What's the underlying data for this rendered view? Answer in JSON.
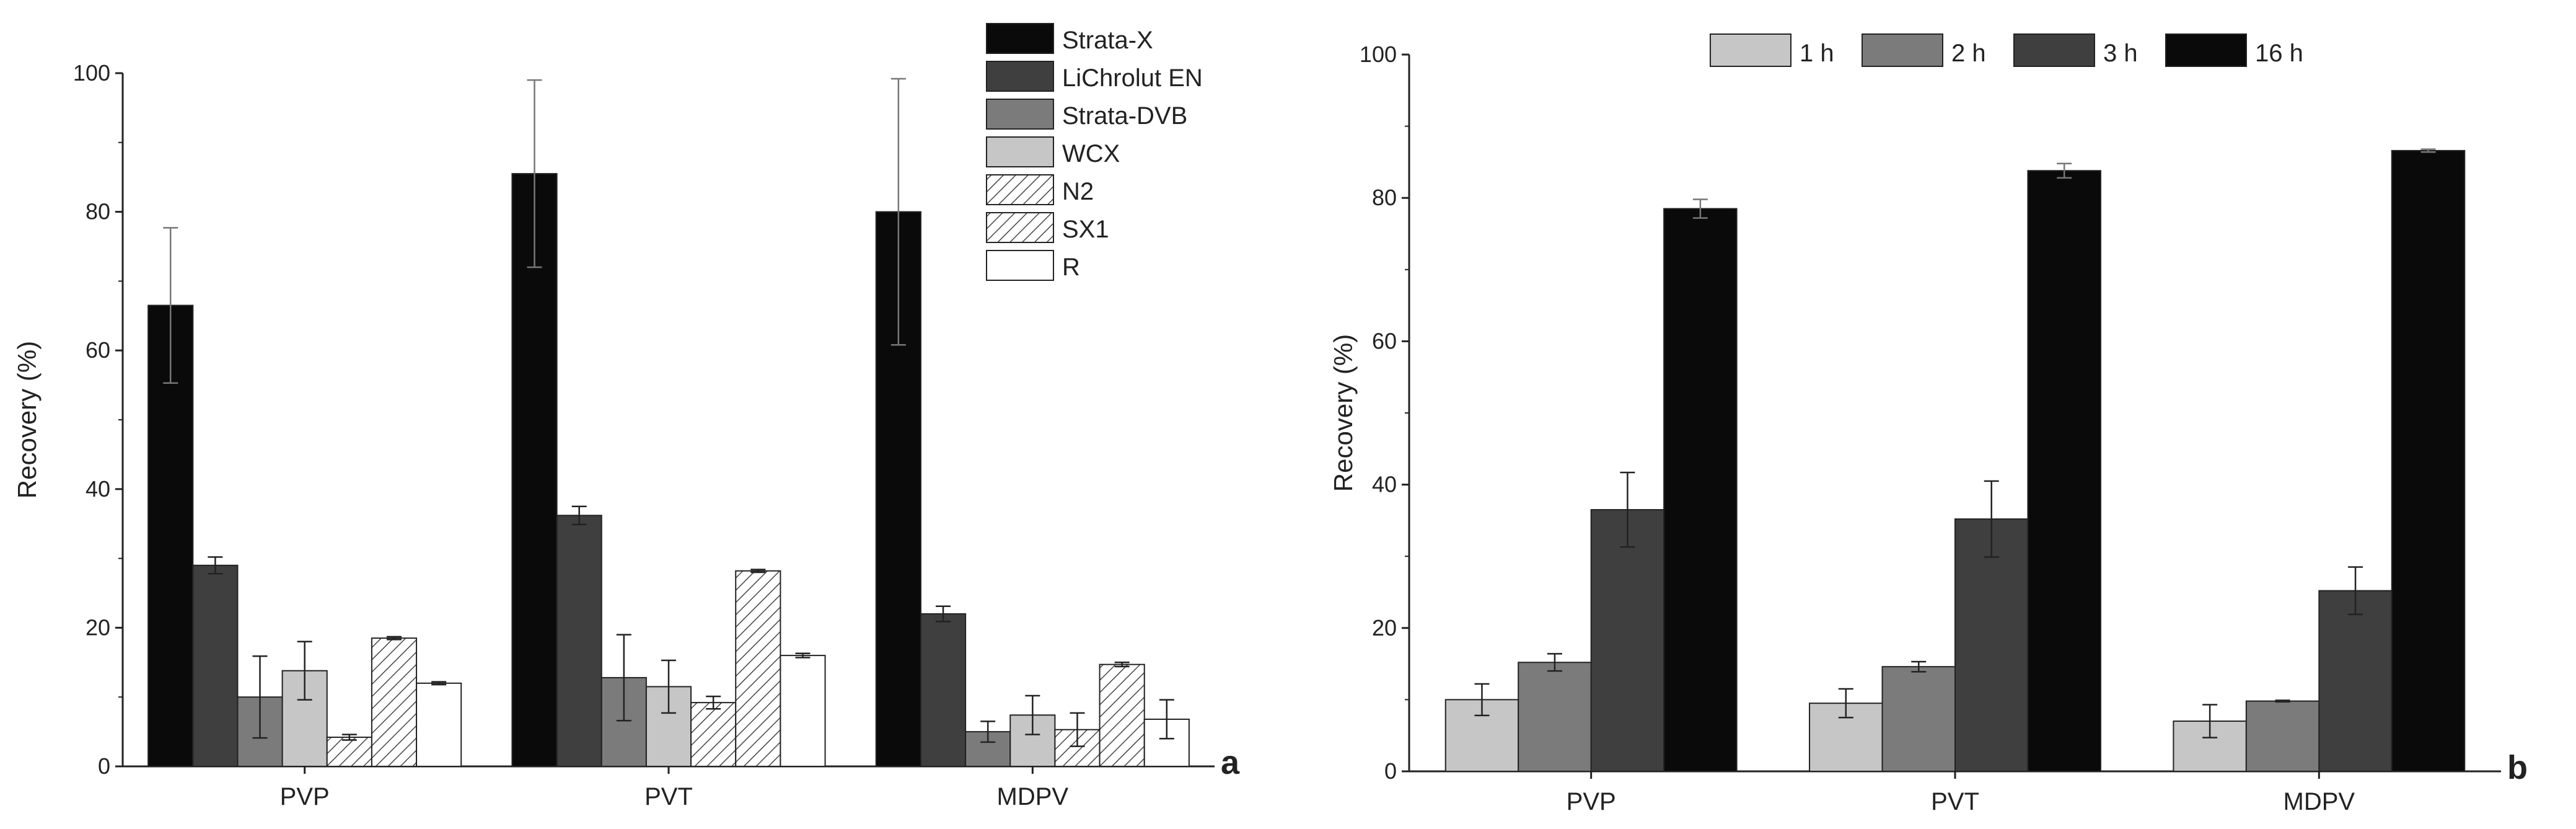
{
  "chart_data": [
    {
      "type": "bar",
      "panel_label": "a",
      "title": "",
      "xlabel": "",
      "ylabel": "Recovery (%)",
      "ylim": [
        0,
        100
      ],
      "yticks": [
        "0",
        "20",
        "40",
        "60",
        "80",
        "100"
      ],
      "categories": [
        "PVP",
        "PVT",
        "MDPV"
      ],
      "legend_position": "top-right",
      "series": [
        {
          "name": "Strata-X",
          "fill": "#0a0a0a",
          "pattern": "solid",
          "values": [
            66.5,
            85.5,
            80.0
          ],
          "errors": [
            11.2,
            13.5,
            19.2
          ]
        },
        {
          "name": "LiChrolut EN",
          "fill": "#3f3f3f",
          "pattern": "solid",
          "values": [
            29.0,
            36.2,
            22.0
          ],
          "errors": [
            1.2,
            1.3,
            1.1
          ]
        },
        {
          "name": "Strata-DVB",
          "fill": "#7b7b7b",
          "pattern": "solid",
          "values": [
            10.0,
            12.8,
            5.0
          ],
          "errors": [
            5.9,
            6.2,
            1.5
          ]
        },
        {
          "name": "WCX",
          "fill": "#c6c6c6",
          "pattern": "solid",
          "values": [
            13.8,
            11.5,
            7.4
          ],
          "errors": [
            4.2,
            3.8,
            2.8
          ]
        },
        {
          "name": "N2",
          "fill": "#ffffff",
          "pattern": "hatch",
          "values": [
            4.2,
            9.2,
            5.3
          ],
          "errors": [
            0.4,
            0.9,
            2.4
          ]
        },
        {
          "name": "SX1",
          "fill": "#ffffff",
          "pattern": "hatch",
          "values": [
            18.5,
            28.2,
            14.7
          ],
          "errors": [
            0.2,
            0.2,
            0.3
          ]
        },
        {
          "name": "R",
          "fill": "#ffffff",
          "pattern": "solid",
          "values": [
            12.0,
            16.0,
            6.8
          ],
          "errors": [
            0.2,
            0.3,
            2.8
          ]
        }
      ]
    },
    {
      "type": "bar",
      "panel_label": "b",
      "title": "",
      "xlabel": "",
      "ylabel": "Recovery (%)",
      "ylim": [
        0,
        100
      ],
      "yticks": [
        "0",
        "20",
        "40",
        "60",
        "80",
        "100"
      ],
      "categories": [
        "PVP",
        "PVT",
        "MDPV"
      ],
      "legend_position": "top",
      "series": [
        {
          "name": "1 h",
          "fill": "#c6c6c6",
          "pattern": "solid",
          "values": [
            10.0,
            9.5,
            7.0
          ],
          "errors": [
            2.2,
            2.0,
            2.3
          ]
        },
        {
          "name": "2 h",
          "fill": "#7b7b7b",
          "pattern": "solid",
          "values": [
            15.2,
            14.6,
            9.8
          ],
          "errors": [
            1.2,
            0.7,
            0.1
          ]
        },
        {
          "name": "3 h",
          "fill": "#3f3f3f",
          "pattern": "solid",
          "values": [
            36.5,
            35.2,
            25.2
          ],
          "errors": [
            5.2,
            5.3,
            3.3
          ]
        },
        {
          "name": "16 h",
          "fill": "#0a0a0a",
          "pattern": "solid",
          "values": [
            78.5,
            83.8,
            86.6
          ],
          "errors": [
            1.3,
            1.0,
            0.2
          ]
        }
      ]
    }
  ]
}
